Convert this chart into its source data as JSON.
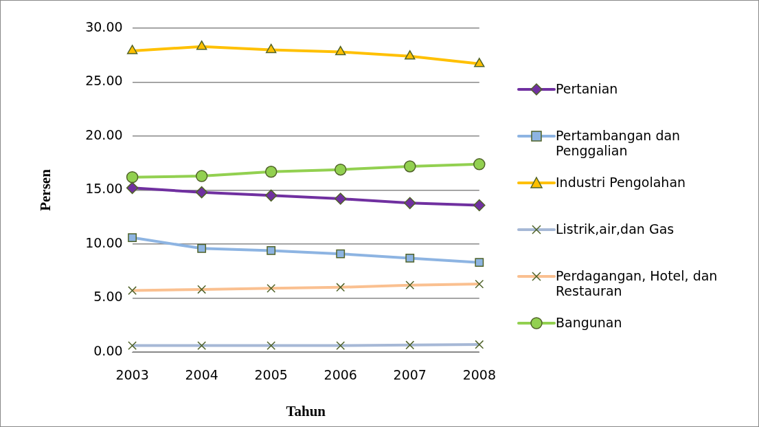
{
  "chart_data": {
    "type": "line",
    "xlabel": "Tahun",
    "ylabel": "Persen",
    "categories": [
      "2003",
      "2004",
      "2005",
      "2006",
      "2007",
      "2008"
    ],
    "series": [
      {
        "name": "Pertanian",
        "color": "#7030a0",
        "marker": "diamond",
        "values": [
          15.2,
          14.8,
          14.5,
          14.2,
          13.8,
          13.6
        ]
      },
      {
        "name": "Pertambangan dan Penggalian",
        "color": "#8db4e2",
        "marker": "square",
        "values": [
          10.6,
          9.6,
          9.4,
          9.1,
          8.7,
          8.3
        ]
      },
      {
        "name": "Industri Pengolahan",
        "color": "#ffc000",
        "marker": "triangle",
        "values": [
          27.9,
          28.3,
          28.0,
          27.8,
          27.4,
          26.7
        ]
      },
      {
        "name": "Listrik,air,dan Gas",
        "color": "#a6b8d6",
        "marker": "cross",
        "values": [
          0.6,
          0.6,
          0.6,
          0.6,
          0.65,
          0.7
        ]
      },
      {
        "name": "Perdagangan, Hotel, dan Restauran",
        "color": "#fac090",
        "marker": "cross",
        "values": [
          5.7,
          5.8,
          5.9,
          6.0,
          6.2,
          6.3
        ]
      },
      {
        "name": "Bangunan",
        "color": "#92d050",
        "marker": "circle",
        "values": [
          16.2,
          16.3,
          16.7,
          16.9,
          17.2,
          17.4
        ]
      }
    ],
    "ylim": [
      0,
      30
    ],
    "yticks": [
      {
        "value": 0,
        "label": "0.00"
      },
      {
        "value": 5,
        "label": "5.00"
      },
      {
        "value": 10,
        "label": "10.00"
      },
      {
        "value": 15,
        "label": "15.00"
      },
      {
        "value": 20,
        "label": "20.00"
      },
      {
        "value": 25,
        "label": "25.00"
      },
      {
        "value": 30,
        "label": "30.00"
      }
    ],
    "grid": "y",
    "legend": "right",
    "line_style": "solid"
  }
}
